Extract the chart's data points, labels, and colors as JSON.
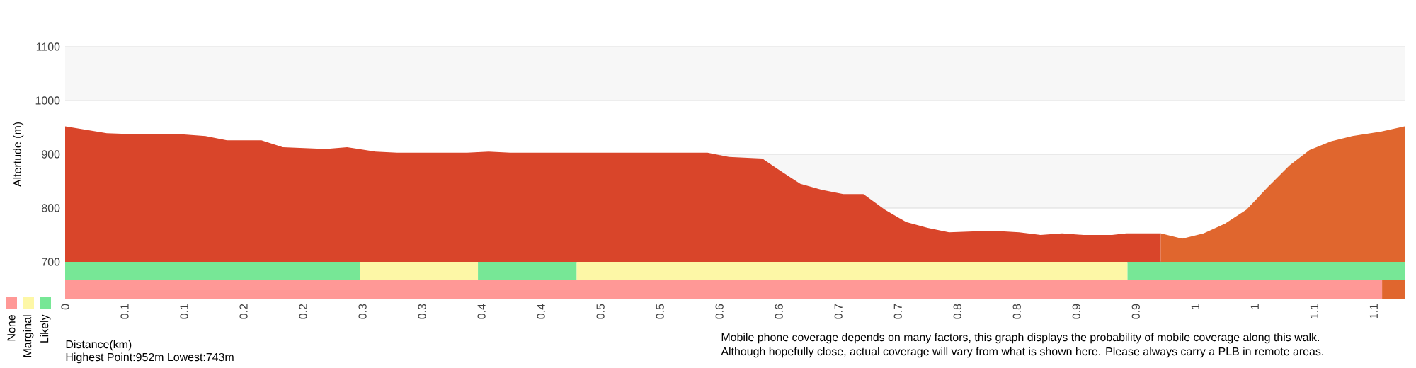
{
  "chart_data": [
    {
      "type": "area",
      "ylabel": "Altertude (m)",
      "grid": "y",
      "tick_labels": "y",
      "xlim": [
        0,
        1.126
      ],
      "ylim": [
        700,
        1100
      ],
      "yticks": [
        700,
        800,
        900,
        1000,
        1100
      ],
      "series": [
        {
          "color": "#d9452a",
          "x": [
            0,
            0.035,
            0.064,
            0.1,
            0.118,
            0.136,
            0.165,
            0.183,
            0.219,
            0.237,
            0.261,
            0.279,
            0.338,
            0.356,
            0.374,
            0.54,
            0.558,
            0.586,
            0.6,
            0.618,
            0.636,
            0.654,
            0.671,
            0.689,
            0.707,
            0.725,
            0.743,
            0.779,
            0.802,
            0.82,
            0.838,
            0.856,
            0.88,
            0.892,
            0.921
          ],
          "values": [
            952,
            939,
            937,
            937,
            934,
            926,
            926,
            913,
            910,
            913,
            905,
            903,
            903,
            905,
            903,
            903,
            895,
            892,
            871,
            845,
            834,
            826,
            826,
            797,
            774,
            763,
            755,
            758,
            755,
            750,
            753,
            750,
            750,
            753,
            753
          ]
        },
        {
          "color": "#e0662e",
          "x": [
            0.921,
            0.939,
            0.957,
            0.975,
            0.993,
            1.011,
            1.029,
            1.046,
            1.064,
            1.082,
            1.106,
            1.126
          ],
          "values": [
            753,
            743,
            753,
            771,
            797,
            839,
            879,
            908,
            924,
            934,
            942,
            952
          ]
        }
      ],
      "annotations": [
        "Highest Point:952m Lowest:743m",
        "Mobile phone coverage depends on many factors, this graph displays the probability of mobile coverage along this walk.",
        "Although hopefully close, actual coverage will vary from what is shown here. Please always carry a PLB in remote areas."
      ]
    },
    {
      "type": "bar",
      "orientation": "horizontal",
      "stacked": true,
      "categories": [
        null,
        null
      ],
      "xlabel": "Distance(km)",
      "legend": "bottom left",
      "tick_labels": "x",
      "xlim": [
        0,
        1.126
      ],
      "xticks": [
        0,
        {
          "value": 0.05,
          "label": "0.1"
        },
        0.1,
        {
          "value": 0.15,
          "label": "0.2"
        },
        0.2,
        {
          "value": 0.25,
          "label": "0.3"
        },
        0.3,
        {
          "value": 0.35,
          "label": "0.4"
        },
        0.4,
        {
          "value": 0.45,
          "label": "0.5"
        },
        0.5,
        {
          "value": 0.55,
          "label": "0.6"
        },
        0.6,
        {
          "value": 0.65,
          "label": "0.7"
        },
        0.7,
        {
          "value": 0.75,
          "label": "0.8"
        },
        0.8,
        {
          "value": 0.85,
          "label": "0.9"
        },
        0.9,
        {
          "value": 0.95,
          "label": "1"
        },
        1,
        {
          "value": 1.05,
          "label": "1.1"
        },
        1.1
      ],
      "series": [
        {
          "name": "None",
          "color": "#ff9896",
          "values": [
            null,
            1.107
          ]
        },
        {
          "color": "#77e796",
          "values": [
            0.248,
            null
          ]
        },
        {
          "name": "Marginal",
          "color": "#fdf7a6",
          "values": [
            0.099,
            null
          ]
        },
        {
          "color": "#77e796",
          "values": [
            0.083,
            null
          ]
        },
        {
          "color": "#fdf7a6",
          "values": [
            0.463,
            null
          ]
        },
        {
          "name": "Likely",
          "color": "#77e796",
          "values": [
            0.233,
            null
          ]
        },
        {
          "color": "#e0662e",
          "values": [
            null,
            0.019
          ]
        }
      ]
    }
  ]
}
